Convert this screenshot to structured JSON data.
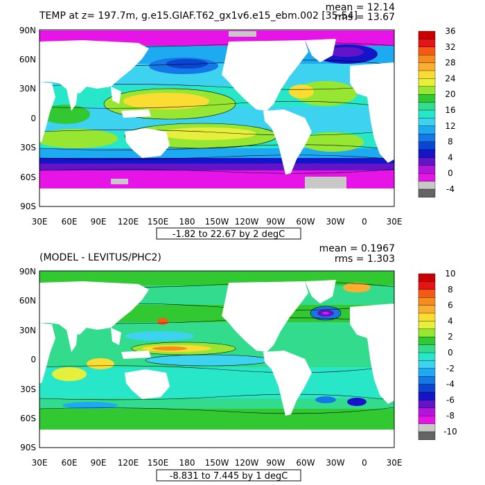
{
  "figure": {
    "panels": [
      {
        "title": "TEMP at z= 197.7m, g.e15.GIAF.T62_gx1v6.e15_ebm.002 [35-54]",
        "mean_label": "mean = 12.14",
        "rms_label": "rms = 13.67",
        "range_label": "-1.82 to 22.67 by 2 degC",
        "colorbar": {
          "labels": [
            "36",
            "32",
            "28",
            "24",
            "20",
            "16",
            "12",
            "8",
            "4",
            "0",
            "-4"
          ],
          "colors": [
            "#c80000",
            "#e61414",
            "#f55a14",
            "#f58c1e",
            "#faaf32",
            "#fadc32",
            "#e6f03c",
            "#96e632",
            "#32c832",
            "#32dc8c",
            "#28e6c8",
            "#3cd2f0",
            "#1eaaf0",
            "#1478e6",
            "#0a46d2",
            "#1414c8",
            "#6414c8",
            "#b414dc",
            "#e614e6",
            "#c8c8c8",
            "#646464"
          ]
        }
      },
      {
        "title": "(MODEL - LEVITUS/PHC2)",
        "mean_label": "mean = 0.1967",
        "rms_label": "rms = 1.303",
        "range_label": "-8.831 to 7.445 by 1 degC",
        "colorbar": {
          "labels": [
            "10",
            "8",
            "6",
            "4",
            "2",
            "0",
            "-2",
            "-4",
            "-6",
            "-8",
            "-10"
          ],
          "colors": [
            "#c80000",
            "#e61414",
            "#f55a14",
            "#f58c1e",
            "#faaf32",
            "#fadc32",
            "#e6f03c",
            "#96e632",
            "#32c832",
            "#32dc8c",
            "#28e6c8",
            "#3cd2f0",
            "#1eaaf0",
            "#1478e6",
            "#0a46d2",
            "#1414c8",
            "#6414c8",
            "#b414dc",
            "#e614e6",
            "#c8c8c8",
            "#646464"
          ]
        }
      }
    ],
    "x_ticks": [
      "30E",
      "60E",
      "90E",
      "120E",
      "150E",
      "180",
      "150W",
      "120W",
      "90W",
      "60W",
      "30W",
      "0",
      "30E"
    ],
    "y_ticks": [
      "90N",
      "60N",
      "30N",
      "0",
      "30S",
      "60S",
      "90S"
    ]
  }
}
